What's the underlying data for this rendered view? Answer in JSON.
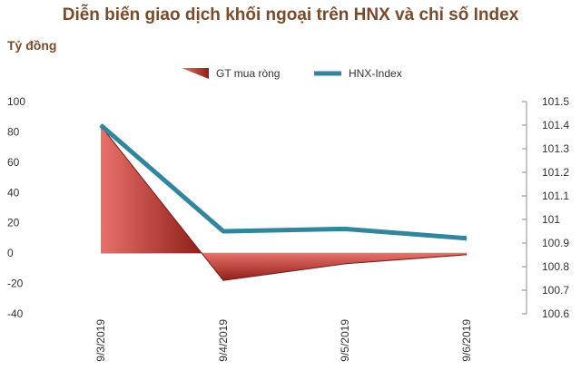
{
  "chart_data": {
    "type": "area+line",
    "title": "Diễn biến giao dịch khối ngoại trên HNX và chỉ số Index",
    "y_left_label": "Tỷ đồng",
    "categories": [
      "9/3/2019",
      "9/4/2019",
      "9/5/2019",
      "9/6/2019"
    ],
    "series": [
      {
        "name": "GT mua ròng",
        "type": "area",
        "axis": "left",
        "values": [
          84,
          -18,
          -7,
          -1
        ],
        "color": "#c0392b"
      },
      {
        "name": "HNX-Index",
        "type": "line",
        "axis": "right",
        "values": [
          101.4,
          100.95,
          100.96,
          100.92
        ],
        "color": "#31859c"
      }
    ],
    "y_left": {
      "min": -40,
      "max": 100,
      "ticks": [
        "100",
        "80",
        "60",
        "40",
        "20",
        "0",
        "-20",
        "-40"
      ]
    },
    "y_right": {
      "min": 100.6,
      "max": 101.5,
      "ticks": [
        "101.5",
        "101.4",
        "101.3",
        "101.2",
        "101.1",
        "101",
        "100.9",
        "100.8",
        "100.7",
        "100.6"
      ]
    },
    "legend_position": "top-center",
    "grid": false
  }
}
